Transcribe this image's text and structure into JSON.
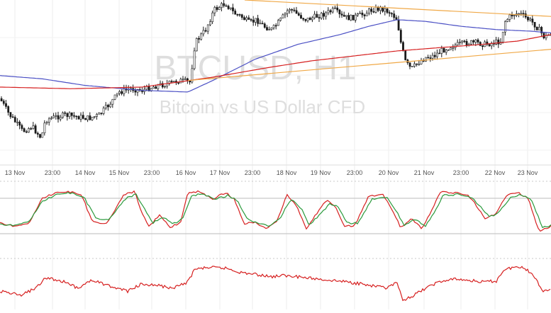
{
  "chart_data": {
    "type": "candlestick",
    "watermark": {
      "title": "BTCUSD, H1",
      "subtitle": "Bitcoin vs US Dollar CFD"
    },
    "x_tick_labels": [
      "13 Nov",
      "23:00",
      "14 Nov",
      "15 Nov",
      "23:00",
      "16 Nov",
      "17 Nov",
      "23:00",
      "18 Nov",
      "19 Nov",
      "23:00",
      "20 Nov",
      "21 Nov",
      "23:00",
      "22 Nov",
      "23 Nov"
    ],
    "grid": true,
    "panes": [
      {
        "name": "price",
        "series": [
          {
            "role": "candles",
            "color": "#222222",
            "shape": [
              [
                0,
                0.6
              ],
              [
                12,
                0.69
              ],
              [
                32,
                0.8
              ],
              [
                45,
                0.77
              ],
              [
                58,
                0.84
              ],
              [
                64,
                0.73
              ],
              [
                80,
                0.71
              ],
              [
                92,
                0.7
              ],
              [
                108,
                0.71
              ],
              [
                125,
                0.72
              ],
              [
                140,
                0.7
              ],
              [
                155,
                0.63
              ],
              [
                168,
                0.56
              ],
              [
                185,
                0.54
              ],
              [
                200,
                0.55
              ],
              [
                222,
                0.52
              ],
              [
                238,
                0.51
              ],
              [
                252,
                0.49
              ],
              [
                268,
                0.5
              ],
              [
                275,
                0.26
              ],
              [
                290,
                0.18
              ],
              [
                302,
                0.06
              ],
              [
                318,
                0.02
              ],
              [
                330,
                0.08
              ],
              [
                340,
                0.1
              ],
              [
                352,
                0.14
              ],
              [
                362,
                0.12
              ],
              [
                372,
                0.16
              ],
              [
                384,
                0.18
              ],
              [
                396,
                0.12
              ],
              [
                408,
                0.05
              ],
              [
                420,
                0.09
              ],
              [
                432,
                0.12
              ],
              [
                446,
                0.1
              ],
              [
                460,
                0.08
              ],
              [
                472,
                0.06
              ],
              [
                480,
                0.1
              ],
              [
                494,
                0.11
              ],
              [
                510,
                0.09
              ],
              [
                524,
                0.06
              ],
              [
                538,
                0.05
              ],
              [
                552,
                0.08
              ],
              [
                560,
                0.12
              ],
              [
                566,
                0.28
              ],
              [
                572,
                0.38
              ],
              [
                580,
                0.42
              ],
              [
                590,
                0.38
              ],
              [
                600,
                0.35
              ],
              [
                612,
                0.34
              ],
              [
                622,
                0.31
              ],
              [
                636,
                0.28
              ],
              [
                648,
                0.27
              ],
              [
                660,
                0.26
              ],
              [
                672,
                0.26
              ],
              [
                684,
                0.27
              ],
              [
                696,
                0.26
              ],
              [
                706,
                0.25
              ],
              [
                712,
                0.13
              ],
              [
                722,
                0.09
              ],
              [
                732,
                0.08
              ],
              [
                742,
                0.11
              ],
              [
                752,
                0.14
              ],
              [
                760,
                0.18
              ],
              [
                768,
                0.23
              ],
              [
                777,
                0.2
              ]
            ]
          },
          {
            "role": "ma-blue",
            "color": "#4a4fc4",
            "shape": [
              [
                0,
                0.46
              ],
              [
                60,
                0.48
              ],
              [
                120,
                0.52
              ],
              [
                200,
                0.55
              ],
              [
                265,
                0.56
              ],
              [
                300,
                0.49
              ],
              [
                360,
                0.36
              ],
              [
                420,
                0.27
              ],
              [
                480,
                0.21
              ],
              [
                520,
                0.16
              ],
              [
                560,
                0.12
              ],
              [
                600,
                0.13
              ],
              [
                650,
                0.16
              ],
              [
                700,
                0.18
              ],
              [
                750,
                0.19
              ],
              [
                777,
                0.2
              ]
            ]
          },
          {
            "role": "ma-red",
            "color": "#d62020",
            "shape": [
              [
                0,
                0.53
              ],
              [
                100,
                0.54
              ],
              [
                200,
                0.53
              ],
              [
                300,
                0.47
              ],
              [
                380,
                0.41
              ],
              [
                440,
                0.37
              ],
              [
                500,
                0.34
              ],
              [
                560,
                0.31
              ],
              [
                620,
                0.29
              ],
              [
                680,
                0.27
              ],
              [
                730,
                0.25
              ],
              [
                777,
                0.21
              ]
            ]
          },
          {
            "role": "trendline-upper",
            "color": "#f0a846",
            "shape": [
              [
                345,
                0.0
              ],
              [
                777,
                0.1
              ]
            ]
          },
          {
            "role": "trendline-lower",
            "color": "#f0a846",
            "shape": [
              [
                265,
                0.49
              ],
              [
                777,
                0.3
              ]
            ]
          }
        ]
      },
      {
        "name": "stochastic",
        "series": [
          {
            "role": "stoch-k",
            "color": "#d62020",
            "shape": [
              [
                0,
                0.72
              ],
              [
                20,
                0.8
              ],
              [
                40,
                0.74
              ],
              [
                60,
                0.18
              ],
              [
                80,
                0.06
              ],
              [
                100,
                0.05
              ],
              [
                115,
                0.1
              ],
              [
                130,
                0.7
              ],
              [
                150,
                0.74
              ],
              [
                175,
                0.1
              ],
              [
                190,
                0.04
              ],
              [
                200,
                0.5
              ],
              [
                210,
                0.8
              ],
              [
                225,
                0.55
              ],
              [
                240,
                0.82
              ],
              [
                255,
                0.7
              ],
              [
                265,
                0.05
              ],
              [
                280,
                0.04
              ],
              [
                300,
                0.2
              ],
              [
                318,
                0.06
              ],
              [
                330,
                0.2
              ],
              [
                345,
                0.74
              ],
              [
                360,
                0.7
              ],
              [
                375,
                0.85
              ],
              [
                390,
                0.7
              ],
              [
                405,
                0.1
              ],
              [
                420,
                0.4
              ],
              [
                432,
                0.86
              ],
              [
                445,
                0.55
              ],
              [
                460,
                0.22
              ],
              [
                472,
                0.34
              ],
              [
                485,
                0.78
              ],
              [
                500,
                0.78
              ],
              [
                520,
                0.14
              ],
              [
                540,
                0.1
              ],
              [
                555,
                0.5
              ],
              [
                565,
                0.82
              ],
              [
                580,
                0.62
              ],
              [
                595,
                0.84
              ],
              [
                610,
                0.4
              ],
              [
                620,
                0.05
              ],
              [
                640,
                0.06
              ],
              [
                660,
                0.12
              ],
              [
                670,
                0.3
              ],
              [
                685,
                0.65
              ],
              [
                700,
                0.5
              ],
              [
                715,
                0.1
              ],
              [
                730,
                0.05
              ],
              [
                745,
                0.2
              ],
              [
                760,
                0.9
              ],
              [
                777,
                0.8
              ]
            ]
          },
          {
            "role": "stoch-d",
            "color": "#2a9a3c",
            "shape": [
              [
                0,
                0.75
              ],
              [
                20,
                0.78
              ],
              [
                40,
                0.7
              ],
              [
                60,
                0.25
              ],
              [
                80,
                0.1
              ],
              [
                100,
                0.07
              ],
              [
                118,
                0.15
              ],
              [
                135,
                0.62
              ],
              [
                152,
                0.66
              ],
              [
                178,
                0.18
              ],
              [
                192,
                0.1
              ],
              [
                205,
                0.45
              ],
              [
                215,
                0.72
              ],
              [
                230,
                0.6
              ],
              [
                245,
                0.74
              ],
              [
                258,
                0.62
              ],
              [
                270,
                0.12
              ],
              [
                285,
                0.1
              ],
              [
                305,
                0.2
              ],
              [
                322,
                0.12
              ],
              [
                335,
                0.24
              ],
              [
                350,
                0.66
              ],
              [
                365,
                0.72
              ],
              [
                380,
                0.8
              ],
              [
                395,
                0.62
              ],
              [
                410,
                0.2
              ],
              [
                425,
                0.4
              ],
              [
                436,
                0.78
              ],
              [
                450,
                0.55
              ],
              [
                465,
                0.3
              ],
              [
                476,
                0.36
              ],
              [
                490,
                0.72
              ],
              [
                505,
                0.72
              ],
              [
                525,
                0.2
              ],
              [
                545,
                0.16
              ],
              [
                558,
                0.45
              ],
              [
                570,
                0.76
              ],
              [
                585,
                0.64
              ],
              [
                600,
                0.78
              ],
              [
                614,
                0.44
              ],
              [
                625,
                0.12
              ],
              [
                645,
                0.1
              ],
              [
                664,
                0.16
              ],
              [
                675,
                0.32
              ],
              [
                690,
                0.6
              ],
              [
                704,
                0.48
              ],
              [
                720,
                0.16
              ],
              [
                735,
                0.1
              ],
              [
                750,
                0.24
              ],
              [
                765,
                0.82
              ],
              [
                777,
                0.78
              ]
            ]
          }
        ]
      },
      {
        "name": "rsi",
        "series": [
          {
            "role": "rsi",
            "color": "#d62020",
            "shape": [
              [
                0,
                0.62
              ],
              [
                30,
                0.72
              ],
              [
                50,
                0.55
              ],
              [
                65,
                0.3
              ],
              [
                90,
                0.4
              ],
              [
                110,
                0.55
              ],
              [
                130,
                0.35
              ],
              [
                150,
                0.48
              ],
              [
                180,
                0.62
              ],
              [
                200,
                0.45
              ],
              [
                220,
                0.48
              ],
              [
                245,
                0.55
              ],
              [
                265,
                0.4
              ],
              [
                275,
                0.1
              ],
              [
                295,
                0.06
              ],
              [
                320,
                0.08
              ],
              [
                340,
                0.18
              ],
              [
                360,
                0.22
              ],
              [
                380,
                0.28
              ],
              [
                400,
                0.25
              ],
              [
                430,
                0.3
              ],
              [
                460,
                0.35
              ],
              [
                490,
                0.4
              ],
              [
                520,
                0.48
              ],
              [
                545,
                0.55
              ],
              [
                560,
                0.42
              ],
              [
                568,
                0.86
              ],
              [
                580,
                0.75
              ],
              [
                600,
                0.55
              ],
              [
                620,
                0.4
              ],
              [
                640,
                0.34
              ],
              [
                660,
                0.36
              ],
              [
                680,
                0.4
              ],
              [
                700,
                0.38
              ],
              [
                710,
                0.12
              ],
              [
                725,
                0.05
              ],
              [
                740,
                0.08
              ],
              [
                755,
                0.3
              ],
              [
                765,
                0.62
              ],
              [
                777,
                0.55
              ]
            ]
          }
        ]
      }
    ]
  }
}
